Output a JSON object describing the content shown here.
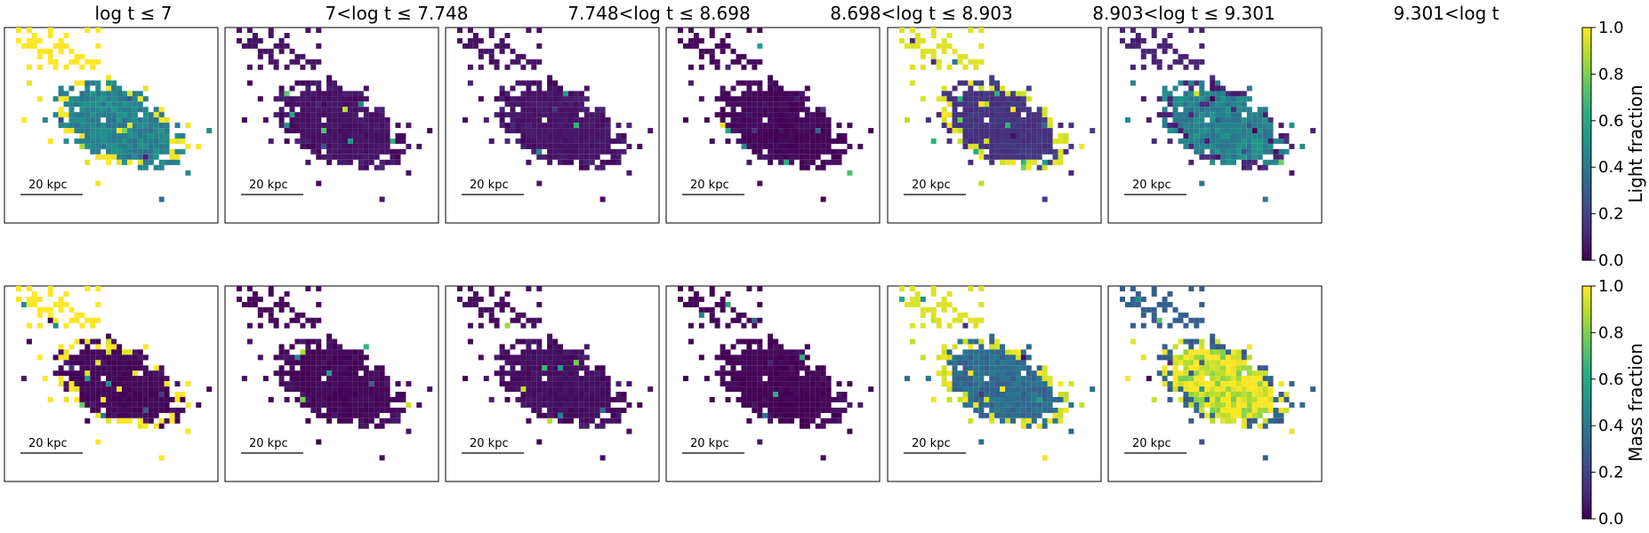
{
  "figure": {
    "colormap": "viridis",
    "empty_pixel_color": "#ffffff",
    "scalebar_label": "20 kpc"
  },
  "chart_data": {
    "type": "heatmap",
    "panel_titles": [
      "log t ≤ 7",
      "7<log t ≤ 7.748",
      "7.748<log t ≤ 8.698",
      "8.698<log t ≤ 8.903",
      "8.903<log t ≤ 9.301",
      "9.301<log t"
    ],
    "rows": [
      {
        "name": "Light fraction",
        "colorbar": {
          "label": "Light fraction",
          "range": [
            0.0,
            1.0
          ],
          "ticks": [
            "0.0",
            "0.2",
            "0.4",
            "0.6",
            "0.8",
            "1.0"
          ]
        },
        "panels": [
          {
            "age_bin": "log t ≤ 7",
            "typical_fraction": 0.45,
            "outer_fraction": 1.0,
            "description_level": "mixed 0.3-0.6 core, yellow outskirts"
          },
          {
            "age_bin": "7<log t ≤ 7.748",
            "typical_fraction": 0.05,
            "outer_fraction": 0.05
          },
          {
            "age_bin": "7.748<log t ≤ 8.698",
            "typical_fraction": 0.06,
            "outer_fraction": 0.05
          },
          {
            "age_bin": "8.698<log t ≤ 8.903",
            "typical_fraction": 0.02,
            "outer_fraction": 0.02
          },
          {
            "age_bin": "8.903<log t ≤ 9.301",
            "typical_fraction": 0.15,
            "outer_fraction": 0.95
          },
          {
            "age_bin": "9.301<log t",
            "typical_fraction": 0.45,
            "outer_fraction": 0.1
          }
        ]
      },
      {
        "name": "Mass fraction",
        "colorbar": {
          "label": "Mass fraction",
          "range": [
            0.0,
            1.0
          ],
          "ticks": [
            "0.0",
            "0.2",
            "0.4",
            "0.6",
            "0.8",
            "1.0"
          ]
        },
        "panels": [
          {
            "age_bin": "log t ≤ 7",
            "typical_fraction": 0.02,
            "outer_fraction": 1.0
          },
          {
            "age_bin": "7<log t ≤ 7.748",
            "typical_fraction": 0.02,
            "outer_fraction": 0.02
          },
          {
            "age_bin": "7.748<log t ≤ 8.698",
            "typical_fraction": 0.04,
            "outer_fraction": 0.03
          },
          {
            "age_bin": "8.698<log t ≤ 8.903",
            "typical_fraction": 0.01,
            "outer_fraction": 0.01
          },
          {
            "age_bin": "8.903<log t ≤ 9.301",
            "typical_fraction": 0.35,
            "outer_fraction": 0.95
          },
          {
            "age_bin": "9.301<log t",
            "typical_fraction": 0.95,
            "outer_fraction": 0.3
          }
        ]
      }
    ]
  }
}
